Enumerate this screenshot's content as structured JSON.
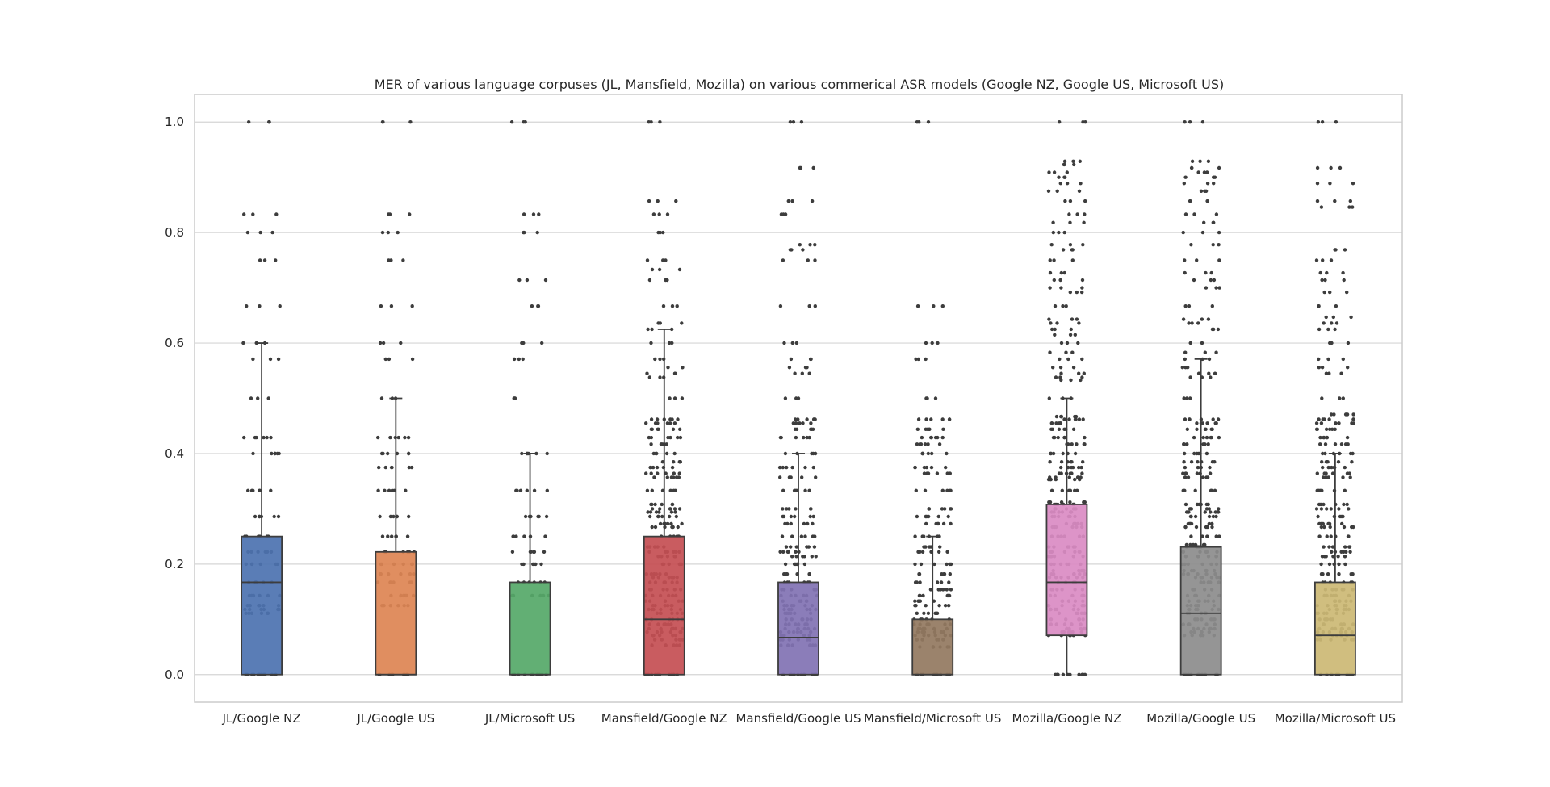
{
  "chart_data": {
    "type": "box",
    "title": "MER of various language corpuses (JL, Mansfield, Mozilla) on various commerical ASR models (Google NZ, Google US, Microsoft US)",
    "xlabel": "",
    "ylabel": "",
    "ylim": [
      -0.05,
      1.05
    ],
    "yticks": [
      0.0,
      0.2,
      0.4,
      0.6,
      0.8,
      1.0
    ],
    "ytick_labels": [
      "0.0",
      "0.2",
      "0.4",
      "0.6",
      "0.8",
      "1.0"
    ],
    "grid": true,
    "overlay": "strip",
    "categories": [
      "JL/Google NZ",
      "JL/Google US",
      "JL/Microsoft US",
      "Mansfield/Google NZ",
      "Mansfield/Google US",
      "Mansfield/Microsoft US",
      "Mozilla/Google NZ",
      "Mozilla/Google US",
      "Mozilla/Microsoft US"
    ],
    "colors": [
      "#4c72b0",
      "#dd8452",
      "#55a868",
      "#c44e52",
      "#8172b3",
      "#937860",
      "#da8bc3",
      "#8c8c8c",
      "#ccb974"
    ],
    "boxes": [
      {
        "min": 0.0,
        "q1": 0.0,
        "median": 0.167,
        "q3": 0.25,
        "max": 0.6
      },
      {
        "min": 0.0,
        "q1": 0.0,
        "median": 0.0,
        "q3": 0.222,
        "max": 0.5
      },
      {
        "min": 0.0,
        "q1": 0.0,
        "median": 0.0,
        "q3": 0.167,
        "max": 0.4
      },
      {
        "min": 0.0,
        "q1": 0.0,
        "median": 0.1,
        "q3": 0.25,
        "max": 0.625
      },
      {
        "min": 0.0,
        "q1": 0.0,
        "median": 0.067,
        "q3": 0.167,
        "max": 0.4
      },
      {
        "min": 0.0,
        "q1": 0.0,
        "median": 0.0,
        "q3": 0.1,
        "max": 0.25
      },
      {
        "min": 0.0,
        "q1": 0.071,
        "median": 0.167,
        "q3": 0.308,
        "max": 0.5
      },
      {
        "min": 0.0,
        "q1": 0.0,
        "median": 0.111,
        "q3": 0.231,
        "max": 0.571
      },
      {
        "min": 0.0,
        "q1": 0.0,
        "median": 0.071,
        "q3": 0.167,
        "max": 0.4
      }
    ],
    "points": [
      [
        0.0,
        0.111,
        0.118,
        0.125,
        0.143,
        0.167,
        0.2,
        0.222,
        0.25,
        0.286,
        0.333,
        0.4,
        0.429,
        0.5,
        0.571,
        0.6,
        0.667,
        0.75,
        0.8,
        0.833,
        1.0
      ],
      [
        0.0,
        0.125,
        0.143,
        0.167,
        0.182,
        0.2,
        0.222,
        0.25,
        0.286,
        0.333,
        0.375,
        0.4,
        0.429,
        0.5,
        0.571,
        0.6,
        0.667,
        0.75,
        0.8,
        0.833,
        1.0
      ],
      [
        0.0,
        0.143,
        0.167,
        0.2,
        0.222,
        0.25,
        0.286,
        0.333,
        0.4,
        0.5,
        0.571,
        0.6,
        0.667,
        0.714,
        0.8,
        0.833,
        1.0
      ],
      [
        0.0,
        0.053,
        0.063,
        0.071,
        0.077,
        0.083,
        0.091,
        0.1,
        0.111,
        0.118,
        0.125,
        0.133,
        0.143,
        0.154,
        0.167,
        0.176,
        0.182,
        0.2,
        0.214,
        0.222,
        0.231,
        0.25,
        0.267,
        0.273,
        0.286,
        0.294,
        0.3,
        0.308,
        0.333,
        0.357,
        0.364,
        0.375,
        0.385,
        0.4,
        0.417,
        0.429,
        0.444,
        0.455,
        0.462,
        0.5,
        0.538,
        0.545,
        0.556,
        0.571,
        0.6,
        0.625,
        0.636,
        0.667,
        0.714,
        0.733,
        0.75,
        0.8,
        0.833,
        0.857,
        1.0
      ],
      [
        0.0,
        0.053,
        0.063,
        0.071,
        0.077,
        0.083,
        0.091,
        0.1,
        0.111,
        0.118,
        0.125,
        0.133,
        0.143,
        0.154,
        0.167,
        0.182,
        0.2,
        0.214,
        0.222,
        0.231,
        0.25,
        0.273,
        0.286,
        0.3,
        0.333,
        0.357,
        0.375,
        0.4,
        0.429,
        0.444,
        0.455,
        0.462,
        0.5,
        0.545,
        0.556,
        0.571,
        0.6,
        0.667,
        0.75,
        0.769,
        0.778,
        0.833,
        0.857,
        0.917,
        1.0
      ],
      [
        0.0,
        0.05,
        0.063,
        0.071,
        0.077,
        0.083,
        0.091,
        0.1,
        0.111,
        0.125,
        0.133,
        0.143,
        0.154,
        0.167,
        0.182,
        0.2,
        0.222,
        0.231,
        0.25,
        0.273,
        0.286,
        0.3,
        0.333,
        0.364,
        0.375,
        0.4,
        0.417,
        0.429,
        0.444,
        0.462,
        0.5,
        0.571,
        0.6,
        0.667,
        1.0
      ],
      [
        0.0,
        0.071,
        0.077,
        0.083,
        0.091,
        0.1,
        0.111,
        0.118,
        0.125,
        0.133,
        0.143,
        0.154,
        0.167,
        0.176,
        0.182,
        0.188,
        0.2,
        0.214,
        0.222,
        0.231,
        0.25,
        0.267,
        0.273,
        0.286,
        0.294,
        0.3,
        0.308,
        0.312,
        0.333,
        0.353,
        0.357,
        0.364,
        0.375,
        0.385,
        0.4,
        0.417,
        0.429,
        0.444,
        0.455,
        0.462,
        0.467,
        0.5,
        0.533,
        0.538,
        0.545,
        0.556,
        0.571,
        0.583,
        0.6,
        0.615,
        0.625,
        0.636,
        0.643,
        0.667,
        0.692,
        0.7,
        0.714,
        0.727,
        0.75,
        0.769,
        0.778,
        0.8,
        0.818,
        0.833,
        0.857,
        0.875,
        0.889,
        0.9,
        0.909,
        0.923,
        0.929,
        1.0
      ],
      [
        0.0,
        0.071,
        0.077,
        0.083,
        0.091,
        0.1,
        0.111,
        0.118,
        0.125,
        0.133,
        0.143,
        0.154,
        0.167,
        0.176,
        0.182,
        0.188,
        0.2,
        0.214,
        0.222,
        0.231,
        0.235,
        0.25,
        0.267,
        0.273,
        0.286,
        0.294,
        0.3,
        0.308,
        0.333,
        0.357,
        0.364,
        0.375,
        0.385,
        0.4,
        0.417,
        0.429,
        0.444,
        0.455,
        0.462,
        0.5,
        0.538,
        0.545,
        0.556,
        0.571,
        0.583,
        0.6,
        0.625,
        0.636,
        0.643,
        0.667,
        0.7,
        0.714,
        0.727,
        0.75,
        0.778,
        0.8,
        0.818,
        0.833,
        0.857,
        0.875,
        0.889,
        0.9,
        0.909,
        0.917,
        0.929,
        1.0
      ],
      [
        0.0,
        0.063,
        0.071,
        0.077,
        0.083,
        0.091,
        0.1,
        0.111,
        0.118,
        0.125,
        0.133,
        0.143,
        0.154,
        0.167,
        0.182,
        0.2,
        0.214,
        0.222,
        0.231,
        0.25,
        0.267,
        0.273,
        0.286,
        0.3,
        0.308,
        0.333,
        0.357,
        0.364,
        0.375,
        0.385,
        0.4,
        0.417,
        0.429,
        0.444,
        0.455,
        0.462,
        0.471,
        0.5,
        0.545,
        0.556,
        0.571,
        0.6,
        0.625,
        0.636,
        0.647,
        0.667,
        0.692,
        0.714,
        0.727,
        0.75,
        0.769,
        0.846,
        0.857,
        0.889,
        0.917,
        1.0
      ]
    ]
  }
}
